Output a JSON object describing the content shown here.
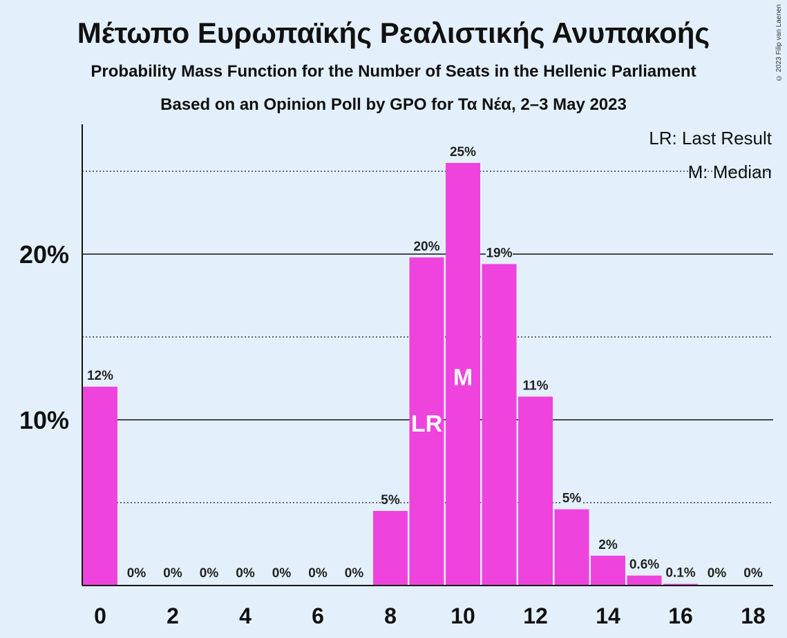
{
  "title": "Μέτωπο Ευρωπαϊκής Ρεαλιστικής Ανυπακοής",
  "subtitle1": "Probability Mass Function for the Number of Seats in the Hellenic Parliament",
  "subtitle2": "Based on an Opinion Poll by GPO for Τα Νέα, 2–3 May 2023",
  "copyright": "© 2023 Filip van Laenen",
  "legend": [
    "LR: Last Result",
    "M: Median"
  ],
  "colors": {
    "bar": "#ee44dd",
    "background": "#e3f0fc"
  },
  "chart_data": {
    "type": "bar",
    "x": [
      0,
      1,
      2,
      3,
      4,
      5,
      6,
      7,
      8,
      9,
      10,
      11,
      12,
      13,
      14,
      15,
      16,
      17,
      18
    ],
    "values": [
      12.0,
      0,
      0,
      0,
      0,
      0,
      0,
      0,
      4.5,
      19.8,
      25.5,
      19.4,
      11.4,
      4.6,
      1.8,
      0.6,
      0.1,
      0,
      0
    ],
    "labels": [
      "12%",
      "0%",
      "0%",
      "0%",
      "0%",
      "0%",
      "0%",
      "0%",
      "5%",
      "20%",
      "25%",
      "19%",
      "11%",
      "5%",
      "2%",
      "0.6%",
      "0.1%",
      "0%",
      "0%"
    ],
    "xticks": [
      "0",
      "2",
      "4",
      "6",
      "8",
      "10",
      "12",
      "14",
      "16",
      "18"
    ],
    "yticks": [
      "10%",
      "20%"
    ],
    "ylim": [
      0,
      27
    ],
    "grid": {
      "solid": [
        10,
        20
      ],
      "dotted": [
        5,
        15,
        25
      ]
    },
    "last_result_seat": 9,
    "median_seat": 10,
    "markers": {
      "last_result": "LR",
      "median": "M"
    },
    "legend_position": "top-right"
  }
}
